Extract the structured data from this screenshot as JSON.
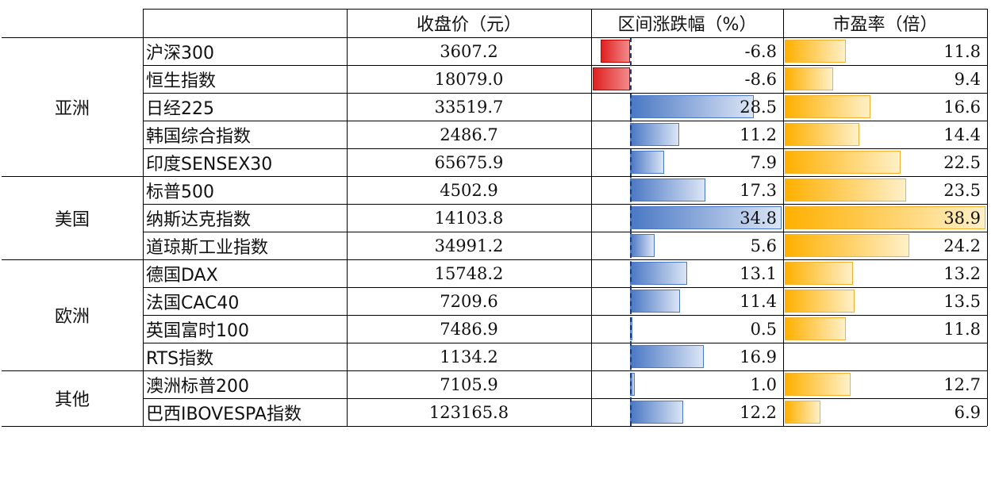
{
  "headers": {
    "blank": "",
    "close": "收盘价（元）",
    "change": "区间涨跌幅（%）",
    "pe": "市盈率（倍）"
  },
  "regions": [
    {
      "name": "亚洲",
      "row_start": 0,
      "row_count": 5
    },
    {
      "name": "美国",
      "row_start": 5,
      "row_count": 3
    },
    {
      "name": "欧洲",
      "row_start": 8,
      "row_count": 4
    },
    {
      "name": "其他",
      "row_start": 12,
      "row_count": 2
    }
  ],
  "rows": [
    {
      "index": "沪深300",
      "close": "3607.2",
      "change": -6.8,
      "change_label": "-6.8",
      "pe": 11.8,
      "pe_label": "11.8"
    },
    {
      "index": "恒生指数",
      "close": "18079.0",
      "change": -8.6,
      "change_label": "-8.6",
      "pe": 9.4,
      "pe_label": "9.4"
    },
    {
      "index": "日经225",
      "close": "33519.7",
      "change": 28.5,
      "change_label": "28.5",
      "pe": 16.6,
      "pe_label": "16.6"
    },
    {
      "index": "韩国综合指数",
      "close": "2486.7",
      "change": 11.2,
      "change_label": "11.2",
      "pe": 14.4,
      "pe_label": "14.4"
    },
    {
      "index": "印度SENSEX30",
      "close": "65675.9",
      "change": 7.9,
      "change_label": "7.9",
      "pe": 22.5,
      "pe_label": "22.5"
    },
    {
      "index": "标普500",
      "close": "4502.9",
      "change": 17.3,
      "change_label": "17.3",
      "pe": 23.5,
      "pe_label": "23.5"
    },
    {
      "index": "纳斯达克指数",
      "close": "14103.8",
      "change": 34.8,
      "change_label": "34.8",
      "pe": 38.9,
      "pe_label": "38.9"
    },
    {
      "index": "道琼斯工业指数",
      "close": "34991.2",
      "change": 5.6,
      "change_label": "5.6",
      "pe": 24.2,
      "pe_label": "24.2"
    },
    {
      "index": "德国DAX",
      "close": "15748.2",
      "change": 13.1,
      "change_label": "13.1",
      "pe": 13.2,
      "pe_label": "13.2"
    },
    {
      "index": "法国CAC40",
      "close": "7209.6",
      "change": 11.4,
      "change_label": "11.4",
      "pe": 13.5,
      "pe_label": "13.5"
    },
    {
      "index": "英国富时100",
      "close": "7486.9",
      "change": 0.5,
      "change_label": "0.5",
      "pe": 11.8,
      "pe_label": "11.8"
    },
    {
      "index": "RTS指数",
      "close": "1134.2",
      "change": 16.9,
      "change_label": "16.9",
      "pe": null,
      "pe_label": ""
    },
    {
      "index": "澳洲标普200",
      "close": "7105.9",
      "change": 1.0,
      "change_label": "1.0",
      "pe": 12.7,
      "pe_label": "12.7"
    },
    {
      "index": "巴西IBOVESPA指数",
      "close": "123165.8",
      "change": 12.2,
      "change_label": "12.2",
      "pe": 6.9,
      "pe_label": "6.9"
    }
  ],
  "colors": {
    "negative": "#e02020",
    "positive": "#4a78c4",
    "pe": "#ffb000"
  },
  "chart_data": {
    "type": "table",
    "columns": [
      "",
      "",
      "收盘价（元）",
      "区间涨跌幅（%）",
      "市盈率（倍）"
    ],
    "change_range": [
      -8.6,
      34.8
    ],
    "pe_range": [
      0,
      38.9
    ]
  }
}
